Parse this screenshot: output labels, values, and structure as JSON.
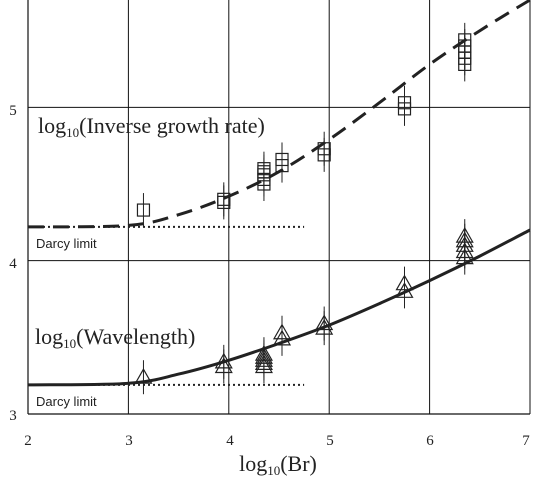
{
  "chart_data": {
    "type": "scatter",
    "x_axis": {
      "label_base": "log",
      "label_sub": "10",
      "label_rest": "(Br)",
      "range": [
        2,
        7
      ],
      "ticks": [
        "2",
        "3",
        "4",
        "5",
        "6",
        "7"
      ]
    },
    "y_axis": {
      "range": [
        3,
        5.7
      ],
      "ticks": [
        "3",
        "4",
        "5"
      ]
    },
    "grid": true,
    "colors": {
      "grid": "#111111",
      "ink": "#222222"
    },
    "series": [
      {
        "label_base": "log",
        "label_sub": "10",
        "label_rest": "(Inverse growth rate)",
        "marker": "square",
        "curve_style": "dashed",
        "limit_label": "Darcy limit",
        "limit_y": 4.22,
        "limit_x_end": 4.75,
        "curve": [
          [
            2.0,
            4.22
          ],
          [
            3.0,
            4.23
          ],
          [
            3.5,
            4.3
          ],
          [
            4.0,
            4.42
          ],
          [
            4.5,
            4.58
          ],
          [
            5.0,
            4.79
          ],
          [
            5.5,
            5.03
          ],
          [
            6.0,
            5.28
          ],
          [
            6.5,
            5.5
          ],
          [
            7.0,
            5.7
          ]
        ],
        "points": [
          [
            3.15,
            4.33
          ],
          [
            3.95,
            4.38
          ],
          [
            3.95,
            4.4
          ],
          [
            4.35,
            4.5
          ],
          [
            4.35,
            4.53
          ],
          [
            4.35,
            4.56
          ],
          [
            4.35,
            4.58
          ],
          [
            4.35,
            4.6
          ],
          [
            4.53,
            4.62
          ],
          [
            4.53,
            4.66
          ],
          [
            4.95,
            4.69
          ],
          [
            4.95,
            4.73
          ],
          [
            5.75,
            4.99
          ],
          [
            5.75,
            5.03
          ],
          [
            6.35,
            5.28
          ],
          [
            6.35,
            5.32
          ],
          [
            6.35,
            5.36
          ],
          [
            6.35,
            5.4
          ],
          [
            6.35,
            5.44
          ]
        ]
      },
      {
        "label_base": "log",
        "label_sub": "10",
        "label_rest": "(Wavelength)",
        "marker": "triangle",
        "curve_style": "solid",
        "limit_label": "Darcy limit",
        "limit_y": 3.19,
        "limit_x_end": 4.75,
        "curve": [
          [
            2.0,
            3.19
          ],
          [
            3.0,
            3.2
          ],
          [
            3.5,
            3.26
          ],
          [
            4.0,
            3.35
          ],
          [
            4.5,
            3.46
          ],
          [
            5.0,
            3.58
          ],
          [
            5.5,
            3.72
          ],
          [
            6.0,
            3.87
          ],
          [
            6.5,
            4.03
          ],
          [
            7.0,
            4.2
          ]
        ],
        "points": [
          [
            3.15,
            3.24
          ],
          [
            3.95,
            3.31
          ],
          [
            3.95,
            3.34
          ],
          [
            4.35,
            3.31
          ],
          [
            4.35,
            3.33
          ],
          [
            4.35,
            3.35
          ],
          [
            4.35,
            3.37
          ],
          [
            4.35,
            3.39
          ],
          [
            4.53,
            3.49
          ],
          [
            4.53,
            3.53
          ],
          [
            4.95,
            3.56
          ],
          [
            4.95,
            3.59
          ],
          [
            5.75,
            3.8
          ],
          [
            5.75,
            3.85
          ],
          [
            6.35,
            4.02
          ],
          [
            6.35,
            4.06
          ],
          [
            6.35,
            4.1
          ],
          [
            6.35,
            4.13
          ],
          [
            6.35,
            4.16
          ]
        ]
      }
    ]
  }
}
